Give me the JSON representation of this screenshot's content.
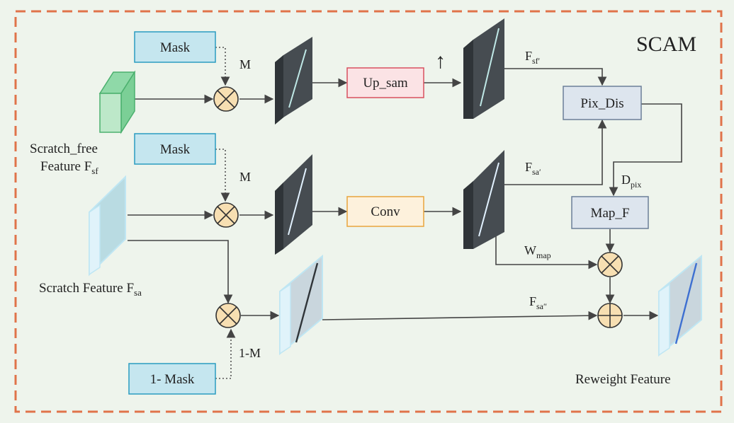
{
  "title": "SCAM",
  "boxes": {
    "mask_top": "Mask",
    "mask_mid": "Mask",
    "mask_bottom": "1- Mask",
    "up_sam": "Up_sam",
    "conv": "Conv",
    "pix_dis": "Pix_Dis",
    "map_f": "Map_F"
  },
  "edge_labels": {
    "m_top": "M",
    "m_mid": "M",
    "one_minus_m": "1-M",
    "up_arrow": "↑"
  },
  "features": {
    "scratch_free_line1": "Scratch_free",
    "scratch_free_line2": "Feature F",
    "scratch_free_sub": "sf",
    "scratch": "Scratch Feature F",
    "scratch_sub": "sa",
    "reweight": "Reweight Feature"
  },
  "symbols": {
    "f_sf_prime": "F",
    "f_sf_prime_sub": "sf′",
    "f_sa_prime": "F",
    "f_sa_prime_sub": "sa′",
    "f_sa_dprime": "F",
    "f_sa_dprime_sub": "sa″",
    "d_pix": "D",
    "d_pix_sub": "pix",
    "w_map": "W",
    "w_map_sub": "map"
  },
  "colors": {
    "border": "#e0734a",
    "mask_fill": "#c5e6ef",
    "mask_stroke": "#2a9bc0",
    "upsam_fill": "#fbe3e5",
    "upsam_stroke": "#d8505e",
    "conv_fill": "#fdf1dc",
    "conv_stroke": "#e8a43c",
    "gray_fill": "#dde5ee",
    "gray_stroke": "#6b7f98",
    "op_fill": "#f7dfb2",
    "dark_slab": "#3e4347",
    "background": "#eef4ec"
  }
}
